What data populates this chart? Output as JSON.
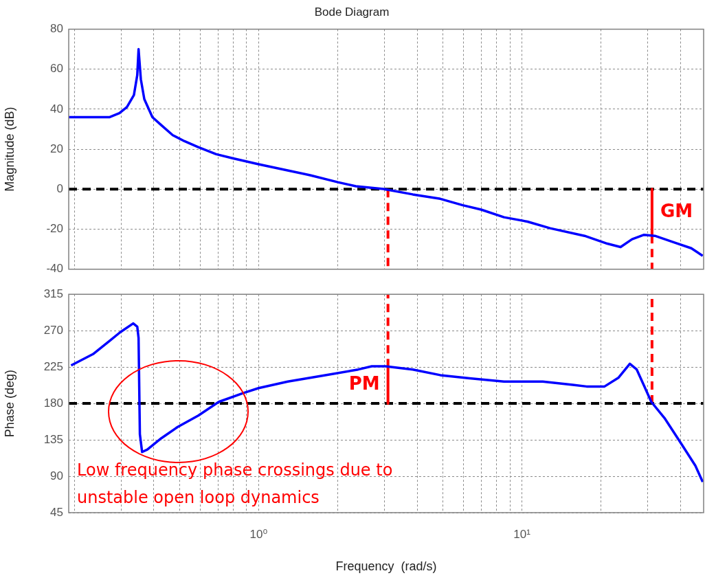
{
  "chart_data": [
    {
      "type": "line",
      "title": "Bode Diagram",
      "ylabel": "Magnitude (dB)",
      "log": "x",
      "grid": true,
      "legend": false,
      "tick_labels": "y",
      "xlim": [
        0.19,
        49
      ],
      "xticks": [
        {
          "value": 0.2,
          "label": null
        },
        {
          "value": 0.3,
          "label": null
        },
        {
          "value": 0.4,
          "label": null
        },
        {
          "value": 0.5,
          "label": null
        },
        {
          "value": 0.6,
          "label": null
        },
        {
          "value": 0.7,
          "label": null
        },
        {
          "value": 0.8,
          "label": null
        },
        {
          "value": 0.9,
          "label": null
        },
        {
          "value": 1,
          "label": null
        },
        {
          "value": 2,
          "label": null
        },
        {
          "value": 3,
          "label": null
        },
        {
          "value": 4,
          "label": null
        },
        {
          "value": 5,
          "label": null
        },
        {
          "value": 6,
          "label": null
        },
        {
          "value": 7,
          "label": null
        },
        {
          "value": 8,
          "label": null
        },
        {
          "value": 9,
          "label": null
        },
        {
          "value": 10,
          "label": null
        },
        {
          "value": 20,
          "label": null
        },
        {
          "value": 30,
          "label": null
        },
        {
          "value": 40,
          "label": null
        }
      ],
      "ylim": [
        -40,
        80
      ],
      "yticks": [
        -40,
        -20,
        0,
        20,
        40,
        60,
        80
      ],
      "series": [
        {
          "color": "#0000ff",
          "x": [
            0.19,
            0.271,
            0.296,
            0.316,
            0.336,
            0.346,
            0.35,
            0.357,
            0.368,
            0.395,
            0.427,
            0.472,
            0.523,
            0.59,
            0.69,
            0.796,
            1.0,
            1.28,
            1.57,
            2.0,
            2.34,
            2.98,
            3.85,
            4.9,
            5.96,
            7.0,
            8.55,
            10.5,
            12.8,
            17.3,
            21.1,
            23.7,
            26.2,
            29.1,
            32.0,
            38.1,
            44,
            48.6
          ],
          "values": [
            36,
            36,
            38,
            41,
            47,
            57,
            70,
            55,
            45,
            36,
            32,
            27,
            24,
            21,
            17.5,
            15.5,
            12.5,
            9.5,
            7,
            3.5,
            1.5,
            0.1,
            -2.6,
            -4.8,
            -8,
            -10.2,
            -14,
            -16.2,
            -19.5,
            -23.3,
            -27.2,
            -28.9,
            -25,
            -22.8,
            -23.3,
            -26.7,
            -29.5,
            -33.3
          ]
        },
        {
          "color": "#ff0000",
          "line_style": "dashed",
          "x": [
            3.1,
            3.1
          ],
          "values": [
            0,
            -40
          ]
        },
        {
          "color": "#ff0000",
          "line_style": "solid",
          "x": [
            31.2,
            31.2
          ],
          "values": [
            0,
            -23
          ]
        },
        {
          "color": "#ff0000",
          "line_style": "dashed",
          "x": [
            31.2,
            31.2
          ],
          "values": [
            -23,
            -40
          ]
        }
      ],
      "ref_lines": [
        {
          "axis": "y",
          "value": 0,
          "color": "#000000",
          "line_style": "dashed"
        }
      ],
      "annotations": [
        {
          "text": "GM",
          "x": 31.2,
          "y": -11.5
        }
      ]
    },
    {
      "type": "line",
      "xlabel": "Frequency  (rad/s)",
      "ylabel": "Phase (deg)",
      "log": "x",
      "grid": true,
      "legend": false,
      "xlim": [
        0.19,
        49
      ],
      "xticks": [
        {
          "value": 0.2,
          "label": null
        },
        {
          "value": 0.3,
          "label": null
        },
        {
          "value": 0.4,
          "label": null
        },
        {
          "value": 0.5,
          "label": null
        },
        {
          "value": 0.6,
          "label": null
        },
        {
          "value": 0.7,
          "label": null
        },
        {
          "value": 0.8,
          "label": null
        },
        {
          "value": 0.9,
          "label": null
        },
        {
          "value": 1,
          "label": "10⁰"
        },
        {
          "value": 2,
          "label": null
        },
        {
          "value": 3,
          "label": null
        },
        {
          "value": 4,
          "label": null
        },
        {
          "value": 5,
          "label": null
        },
        {
          "value": 6,
          "label": null
        },
        {
          "value": 7,
          "label": null
        },
        {
          "value": 8,
          "label": null
        },
        {
          "value": 9,
          "label": null
        },
        {
          "value": 10,
          "label": "10¹"
        },
        {
          "value": 20,
          "label": null
        },
        {
          "value": 30,
          "label": null
        },
        {
          "value": 40,
          "label": null
        }
      ],
      "ylim": [
        45,
        315
      ],
      "yticks": [
        45,
        90,
        135,
        180,
        225,
        270,
        315
      ],
      "series": [
        {
          "color": "#0000ff",
          "x": [
            0.194,
            0.235,
            0.271,
            0.298,
            0.334,
            0.346,
            0.35,
            0.354,
            0.361,
            0.378,
            0.427,
            0.493,
            0.59,
            0.706,
            0.876,
            1.0,
            1.29,
            1.73,
            2.39,
            2.69,
            3.03,
            3.85,
            4.9,
            6.33,
            8.55,
            12.0,
            15.6,
            17.6,
            20.6,
            23.3,
            25.7,
            27.3,
            29.1,
            31.0,
            34.8,
            40.7,
            45.6,
            48.6
          ],
          "values": [
            227,
            241,
            257,
            268,
            279,
            275,
            261,
            142,
            120,
            123,
            137,
            151,
            165,
            182,
            193,
            199,
            207,
            214,
            222,
            226,
            226,
            222,
            215,
            211,
            207,
            207,
            203,
            201,
            201,
            212,
            229,
            222,
            202,
            182,
            162,
            128,
            103,
            83
          ]
        },
        {
          "color": "#ff0000",
          "line_style": "dashed",
          "x": [
            3.1,
            3.1
          ],
          "values": [
            225,
            315
          ]
        },
        {
          "color": "#ff0000",
          "line_style": "solid",
          "x": [
            3.1,
            3.1
          ],
          "values": [
            225,
            180
          ]
        },
        {
          "color": "#ff0000",
          "line_style": "dashed",
          "x": [
            31.2,
            31.2
          ],
          "values": [
            180,
            315
          ]
        }
      ],
      "ref_lines": [
        {
          "axis": "y",
          "value": 180,
          "color": "#000000",
          "line_style": "dashed"
        }
      ],
      "annotations": [
        {
          "text": "PM",
          "x": 3.1,
          "y": 202.5
        },
        "Low frequency phase crossings due to unstable open loop dynamics"
      ]
    }
  ]
}
